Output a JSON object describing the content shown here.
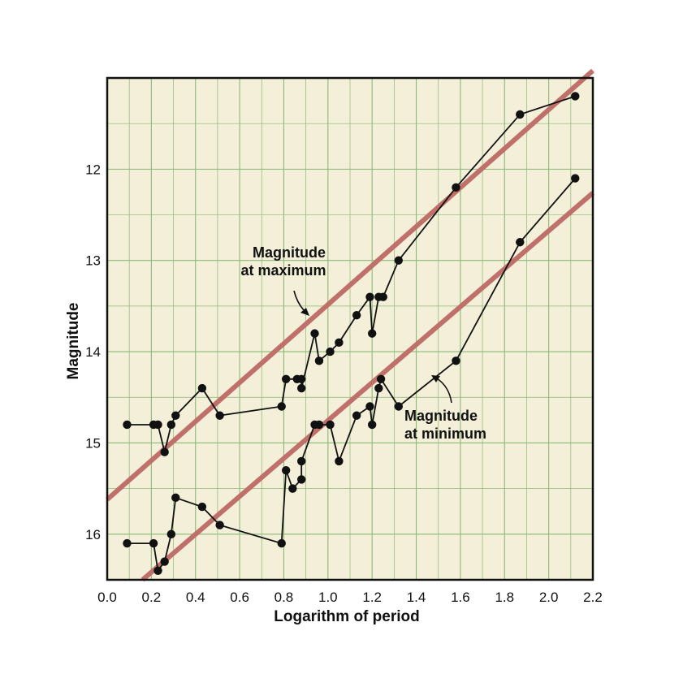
{
  "chart_data": {
    "type": "scatter",
    "title": "",
    "xlabel": "Logarithm of period",
    "ylabel": "Magnitude",
    "xlim": [
      0.0,
      2.2
    ],
    "ylim": [
      16.5,
      11.0
    ],
    "y_inverted": true,
    "grid": true,
    "x_ticks": [
      "0.0",
      "0.2",
      "0.4",
      "0.6",
      "0.8",
      "1.0",
      "1.2",
      "1.4",
      "1.6",
      "1.8",
      "2.0",
      "2.2"
    ],
    "y_ticks": [
      "12",
      "13",
      "14",
      "15",
      "16"
    ],
    "colors": {
      "background": "#f3efd8",
      "grid": "#8cb878",
      "fit_line": "#c0706a",
      "points": "#111111"
    },
    "series": [
      {
        "points": [
          [
            0.09,
            14.8
          ],
          [
            0.21,
            14.8
          ],
          [
            0.23,
            14.8
          ],
          [
            0.26,
            15.1
          ],
          [
            0.29,
            14.8
          ],
          [
            0.31,
            14.7
          ],
          [
            0.43,
            14.4
          ],
          [
            0.51,
            14.7
          ],
          [
            0.79,
            14.6
          ],
          [
            0.81,
            14.3
          ],
          [
            0.86,
            14.3
          ],
          [
            0.88,
            14.3
          ],
          [
            0.88,
            14.4
          ],
          [
            0.94,
            13.8
          ],
          [
            0.96,
            14.1
          ],
          [
            1.01,
            14.0
          ],
          [
            1.05,
            13.9
          ],
          [
            1.13,
            13.6
          ],
          [
            1.19,
            13.4
          ],
          [
            1.2,
            13.8
          ],
          [
            1.23,
            13.4
          ],
          [
            1.25,
            13.4
          ],
          [
            1.32,
            13.0
          ],
          [
            1.58,
            12.2
          ],
          [
            1.87,
            11.4
          ],
          [
            2.12,
            11.2
          ]
        ]
      },
      {
        "points": [
          [
            0.09,
            16.1
          ],
          [
            0.21,
            16.1
          ],
          [
            0.23,
            16.4
          ],
          [
            0.26,
            16.3
          ],
          [
            0.29,
            16.0
          ],
          [
            0.31,
            15.6
          ],
          [
            0.43,
            15.7
          ],
          [
            0.51,
            15.9
          ],
          [
            0.79,
            16.1
          ],
          [
            0.81,
            15.3
          ],
          [
            0.84,
            15.5
          ],
          [
            0.88,
            15.4
          ],
          [
            0.88,
            15.2
          ],
          [
            0.94,
            14.8
          ],
          [
            0.96,
            14.8
          ],
          [
            1.01,
            14.8
          ],
          [
            1.05,
            15.2
          ],
          [
            1.13,
            14.7
          ],
          [
            1.19,
            14.6
          ],
          [
            1.2,
            14.8
          ],
          [
            1.23,
            14.4
          ],
          [
            1.24,
            14.3
          ],
          [
            1.32,
            14.6
          ],
          [
            1.58,
            14.1
          ],
          [
            1.87,
            12.8
          ],
          [
            2.12,
            12.1
          ]
        ]
      }
    ],
    "fit_lines": [
      {
        "from": [
          0.0,
          15.62
        ],
        "to": [
          2.2,
          10.92
        ]
      },
      {
        "from": [
          0.16,
          16.5
        ],
        "to": [
          2.2,
          12.26
        ]
      }
    ],
    "annotations": [
      {
        "line1": "Magnitude",
        "line2": "at maximum"
      },
      {
        "line1": "Magnitude",
        "line2": "at minimum"
      }
    ]
  }
}
